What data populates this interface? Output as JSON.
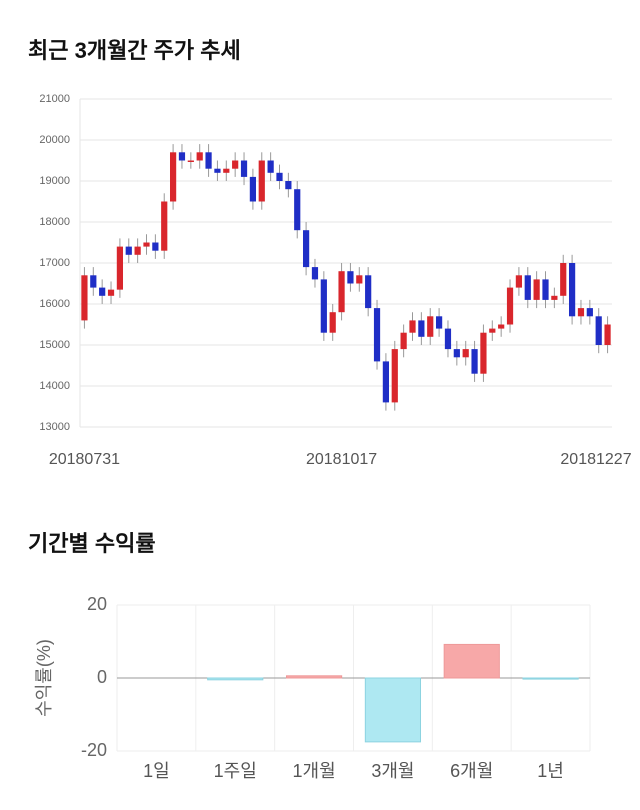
{
  "chart_data": [
    {
      "type": "candlestick",
      "title": "최근 3개월간 주가 추세",
      "categories": [
        "20180731",
        null,
        null,
        null,
        null,
        null,
        null,
        null,
        null,
        null,
        null,
        null,
        null,
        null,
        null,
        null,
        null,
        null,
        null,
        null,
        null,
        null,
        null,
        null,
        null,
        null,
        null,
        null,
        null,
        "20181017",
        null,
        null,
        null,
        null,
        null,
        null,
        null,
        null,
        null,
        null,
        null,
        null,
        null,
        null,
        null,
        null,
        null,
        null,
        null,
        null,
        null,
        null,
        null,
        null,
        null,
        null,
        null,
        null,
        null,
        "20181227"
      ],
      "open": [
        15600,
        16700,
        16400,
        16200,
        16350,
        17400,
        17200,
        17400,
        17500,
        17300,
        18500,
        19700,
        19500,
        19500,
        19700,
        19300,
        19200,
        19300,
        19500,
        19100,
        18500,
        19500,
        19200,
        19000,
        18800,
        17800,
        16900,
        16600,
        15300,
        15800,
        16800,
        16500,
        16700,
        15900,
        14600,
        13600,
        14900,
        15300,
        15600,
        15200,
        15700,
        15400,
        14900,
        14700,
        14900,
        14300,
        15300,
        15400,
        15500,
        16400,
        16700,
        16100,
        16600,
        16100,
        16200,
        17000,
        15700,
        15900,
        15700,
        15000
      ],
      "high": [
        16900,
        16900,
        16600,
        16550,
        17600,
        17600,
        17600,
        17700,
        17700,
        18700,
        19900,
        19900,
        19700,
        19900,
        19900,
        19500,
        19500,
        19700,
        19700,
        19300,
        19700,
        19700,
        19400,
        19200,
        19000,
        18000,
        17100,
        16800,
        16000,
        17000,
        17000,
        16900,
        16900,
        16100,
        14800,
        15100,
        15500,
        15800,
        15800,
        15900,
        15900,
        15600,
        15100,
        15100,
        15100,
        15500,
        15600,
        15700,
        16600,
        16900,
        16900,
        16800,
        16800,
        16400,
        17200,
        17200,
        16100,
        16100,
        15900,
        15700
      ],
      "low": [
        15400,
        16200,
        16000,
        16000,
        16150,
        17000,
        17000,
        17200,
        17100,
        17100,
        18300,
        19300,
        19300,
        19300,
        19100,
        19000,
        19000,
        19100,
        18900,
        18300,
        18300,
        19000,
        18800,
        18600,
        17600,
        16700,
        16400,
        15100,
        15100,
        15600,
        16300,
        16300,
        15700,
        14400,
        13400,
        13400,
        14700,
        15100,
        15000,
        15000,
        15200,
        14700,
        14500,
        14500,
        14100,
        14100,
        15100,
        15200,
        15300,
        16200,
        15900,
        15900,
        15900,
        15900,
        16000,
        15500,
        15500,
        15500,
        14800,
        14800
      ],
      "close": [
        16700,
        16400,
        16200,
        16350,
        17400,
        17200,
        17400,
        17500,
        17300,
        18500,
        19700,
        19500,
        19500,
        19700,
        19300,
        19200,
        19300,
        19500,
        19100,
        18500,
        19500,
        19200,
        19000,
        18800,
        17800,
        16900,
        16600,
        15300,
        15800,
        16800,
        16500,
        16700,
        15900,
        14600,
        13600,
        14900,
        15300,
        15600,
        15200,
        15700,
        15400,
        14900,
        14700,
        14900,
        14300,
        15300,
        15400,
        15500,
        16400,
        16700,
        16100,
        16600,
        16100,
        16200,
        17000,
        15700,
        15900,
        15700,
        15000,
        15500
      ],
      "up_color": "#d9262c",
      "down_color": "#1f2ec6",
      "ylim": [
        13000,
        21000
      ],
      "yticks": [
        13000,
        14000,
        15000,
        16000,
        17000,
        18000,
        19000,
        20000,
        21000
      ],
      "grid": true
    },
    {
      "type": "bar",
      "title": "기간별 수익률",
      "y_label": "수익률(%)",
      "categories": [
        "1일",
        "1주일",
        "1개월",
        "3개월",
        "6개월",
        "1년"
      ],
      "values": [
        0,
        -0.5,
        0.6,
        -17.5,
        9.2,
        -0.3
      ],
      "positive_color": "#f7a8a8",
      "negative_color": "#aee8f2",
      "ylim": [
        -20,
        20
      ],
      "yticks": [
        -20,
        0,
        20
      ],
      "grid": true
    }
  ]
}
